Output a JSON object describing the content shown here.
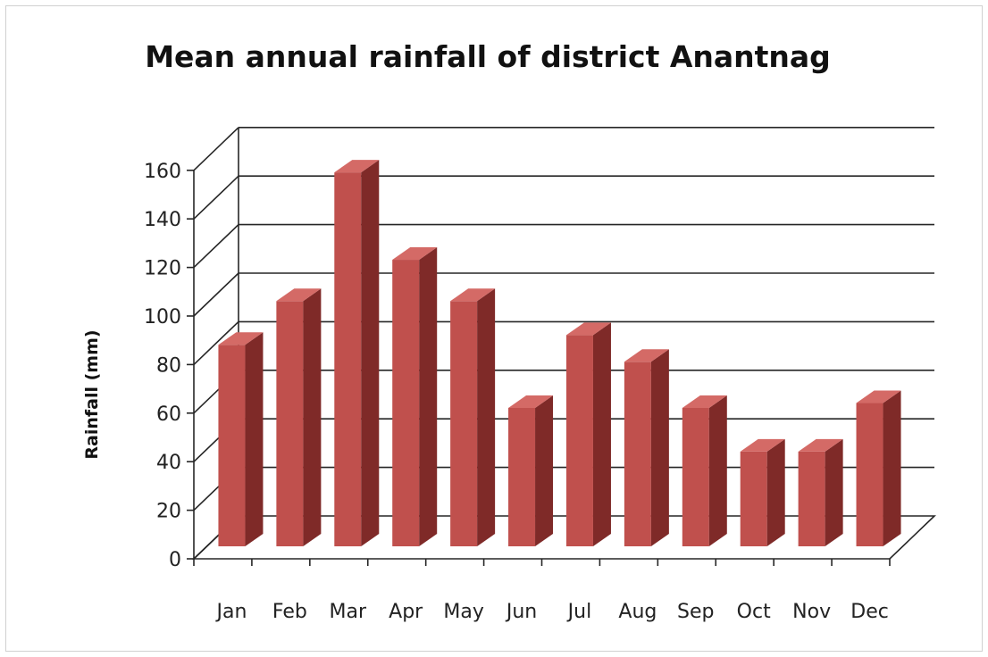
{
  "chart_data": {
    "type": "bar",
    "title": "Mean annual rainfall of district Anantnag",
    "xlabel": "",
    "ylabel": "Rainfall (mm)",
    "categories": [
      "Jan",
      "Feb",
      "Mar",
      "Apr",
      "May",
      "Jun",
      "Jul",
      "Aug",
      "Sep",
      "Oct",
      "Nov",
      "Dec"
    ],
    "values": [
      83,
      101,
      154,
      118,
      101,
      57,
      87,
      76,
      57,
      39,
      39,
      59
    ],
    "ylim": [
      0,
      160
    ],
    "yticks": [
      "0",
      "20",
      "40",
      "60",
      "80",
      "100",
      "120",
      "140",
      "160"
    ],
    "grid": true,
    "style": "3d-column",
    "colors": {
      "bar_front": "#c0504d",
      "bar_side": "#7f2a28",
      "bar_top": "#d46a66",
      "grid": "#262626"
    }
  }
}
